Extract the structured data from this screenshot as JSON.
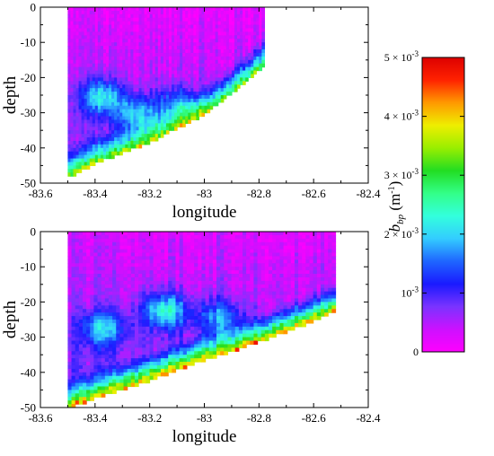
{
  "chart_data": [
    {
      "type": "heatmap",
      "panel": "top",
      "xlabel": "longitude",
      "ylabel": "depth",
      "xlim": [
        -83.6,
        -82.4
      ],
      "ylim": [
        -50,
        0
      ],
      "xticks": [
        "-83.6",
        "-83.4",
        "-83.2",
        "-83",
        "-82.8",
        "-82.6",
        "-82.4"
      ],
      "yticks": [
        "0",
        "-10",
        "-20",
        "-30",
        "-40",
        "-50"
      ],
      "data_lon_range": [
        -83.5,
        -82.78
      ],
      "seafloor": [
        [
          -83.5,
          -48
        ],
        [
          -83.4,
          -44
        ],
        [
          -83.2,
          -38
        ],
        [
          -83.0,
          -30
        ],
        [
          -82.9,
          -24
        ],
        [
          -82.78,
          -16
        ]
      ],
      "bottom_layer_bbp": 0.004,
      "mid_layer_features": [
        {
          "lon": -83.38,
          "depth": -25,
          "bbp": 0.0018
        },
        {
          "lon": -83.25,
          "depth": -30,
          "bbp": 0.0016
        },
        {
          "lon": -83.1,
          "depth": -27,
          "bbp": 0.0013
        }
      ],
      "surface_bbp": 0.0002
    },
    {
      "type": "heatmap",
      "panel": "bottom",
      "xlabel": "longitude",
      "ylabel": "depth",
      "xlim": [
        -83.6,
        -82.4
      ],
      "ylim": [
        -50,
        0
      ],
      "xticks": [
        "-83.6",
        "-83.4",
        "-83.2",
        "-83",
        "-82.8",
        "-82.6",
        "-82.4"
      ],
      "yticks": [
        "0",
        "-10",
        "-20",
        "-30",
        "-40",
        "-50"
      ],
      "data_lon_range": [
        -83.5,
        -82.52
      ],
      "seafloor": [
        [
          -83.5,
          -50
        ],
        [
          -83.4,
          -47
        ],
        [
          -83.2,
          -42
        ],
        [
          -83.0,
          -36
        ],
        [
          -82.8,
          -31
        ],
        [
          -82.6,
          -25
        ],
        [
          -82.52,
          -22
        ]
      ],
      "bottom_layer_bbp": 0.0047,
      "mid_layer_features": [
        {
          "lon": -83.38,
          "depth": -27,
          "bbp": 0.0017
        },
        {
          "lon": -83.15,
          "depth": -22,
          "bbp": 0.0021
        },
        {
          "lon": -82.95,
          "depth": -24,
          "bbp": 0.0015
        }
      ],
      "surface_bbp": 0.0003
    }
  ],
  "colorbar": {
    "label_main": "b",
    "label_sub": "bp",
    "label_units": " (m",
    "label_exp": "-1",
    "label_close": ")",
    "ticks": [
      {
        "value": 0,
        "mantissa": "0",
        "exp": ""
      },
      {
        "value": 0.001,
        "mantissa": "10",
        "exp": "-3"
      },
      {
        "value": 0.002,
        "mantissa": "2 × 10",
        "exp": "-3"
      },
      {
        "value": 0.003,
        "mantissa": "3 × 10",
        "exp": "-3"
      },
      {
        "value": 0.004,
        "mantissa": "4 × 10",
        "exp": "-3"
      },
      {
        "value": 0.005,
        "mantissa": "5 × 10",
        "exp": "-3"
      }
    ],
    "range": [
      0,
      0.005
    ],
    "colors": [
      "#ff00ff",
      "#cc11ff",
      "#7a33ff",
      "#1a1aff",
      "#1f66ff",
      "#33ccff",
      "#33ffdd",
      "#33ff88",
      "#22dd22",
      "#99ee00",
      "#eeee00",
      "#ff9900",
      "#ff2200",
      "#dd0000"
    ]
  }
}
